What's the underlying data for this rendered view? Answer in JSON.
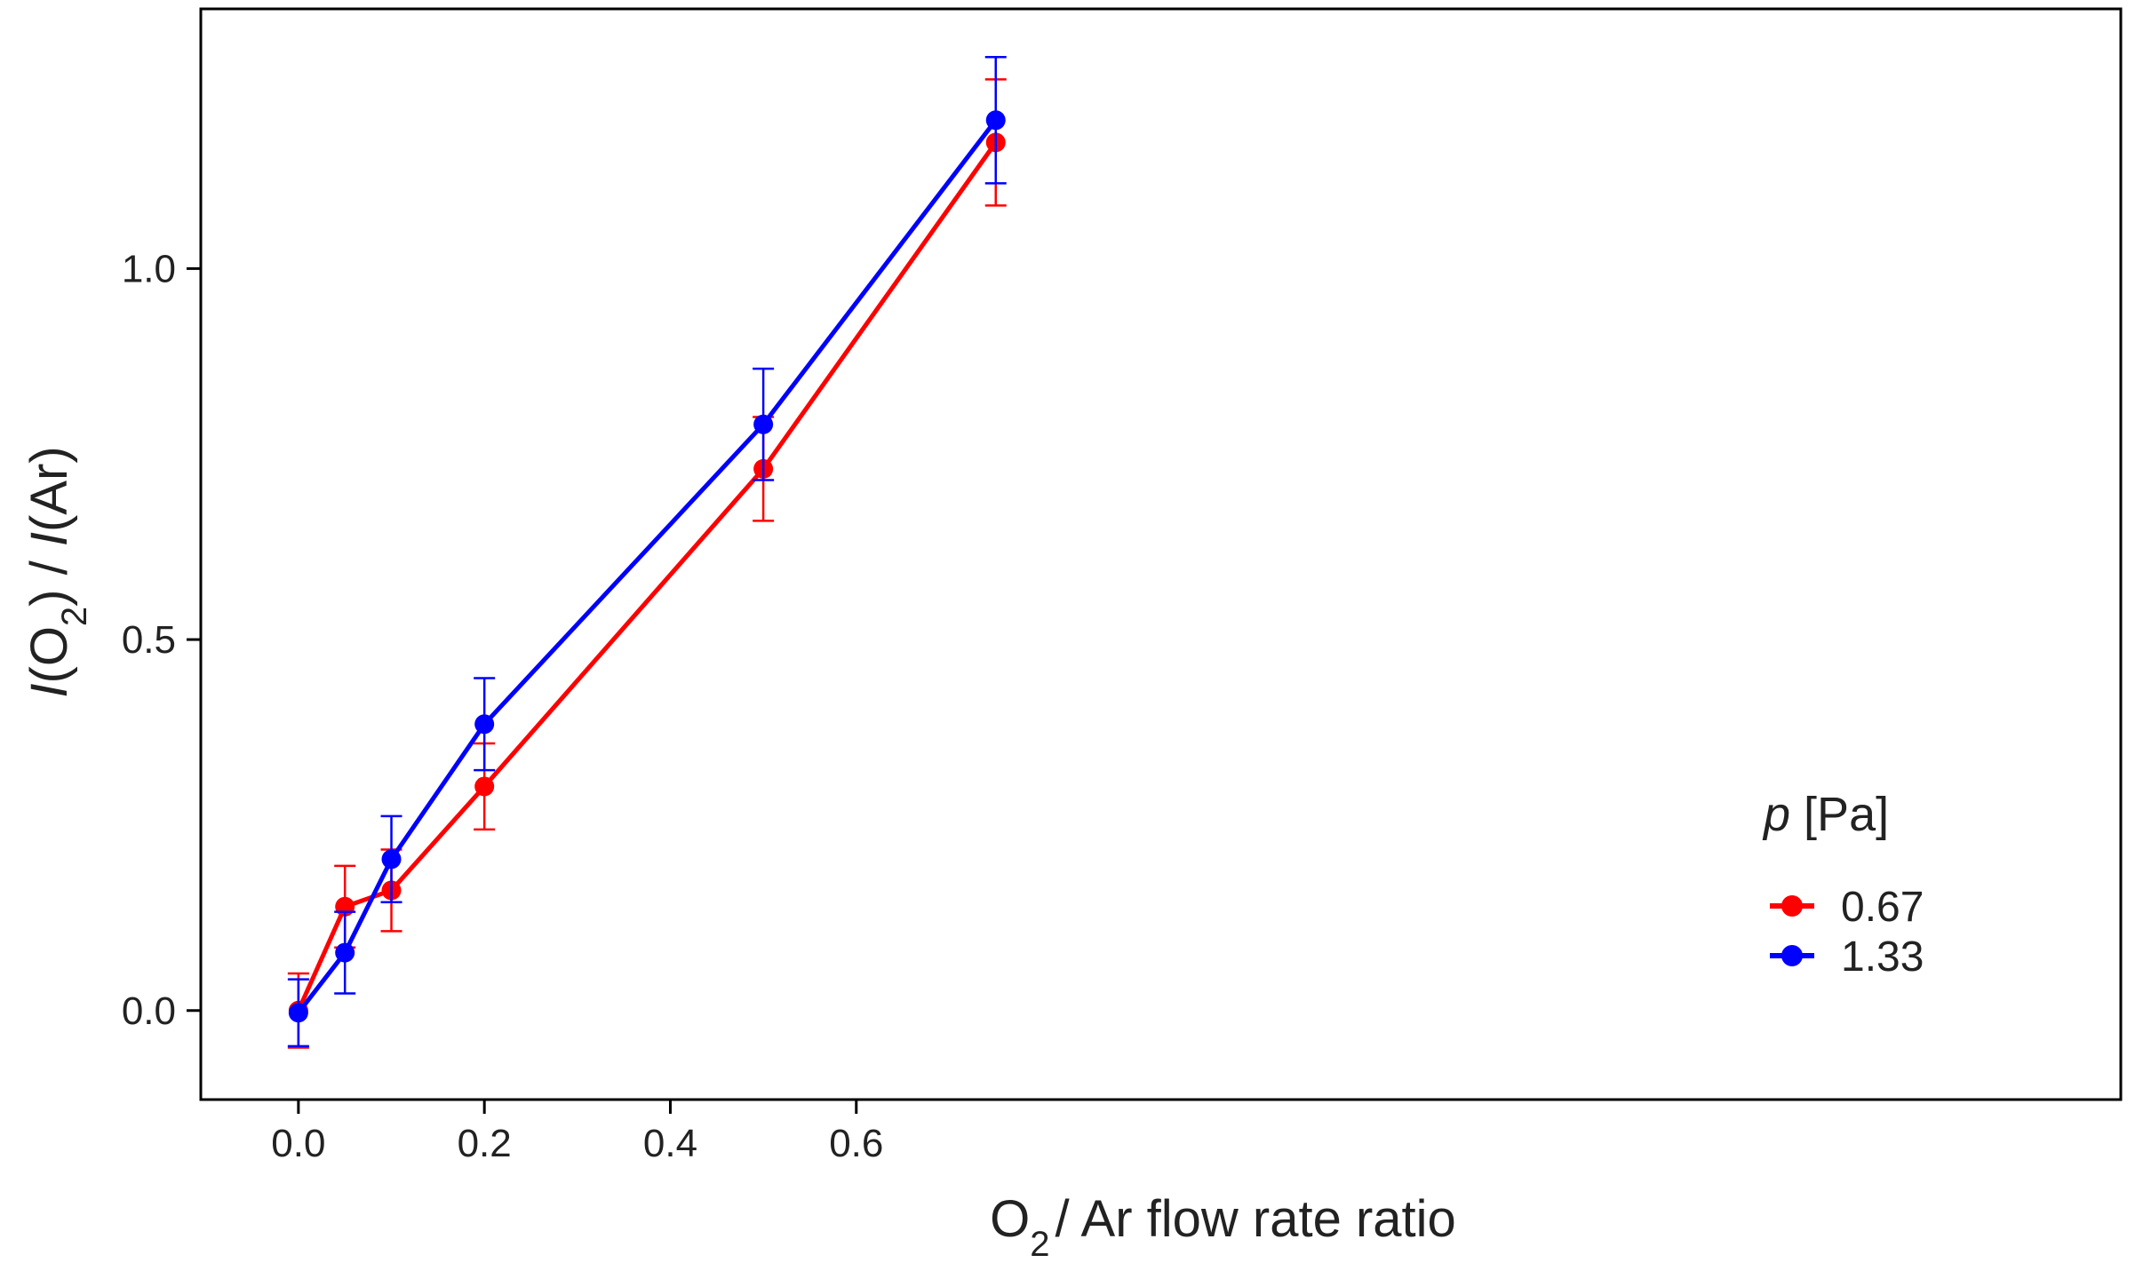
{
  "chart_data": {
    "type": "line",
    "title": "",
    "xlabel": {
      "main": "O",
      "sub": "2",
      "rest": "/ Ar flow rate ratio"
    },
    "ylabel": {
      "i1": "I",
      "p1": "(O",
      "sub": "2",
      "p2": ") / ",
      "i2": "I",
      "p3": "(Ar)"
    },
    "xlim": [
      -0.105,
      1.96
    ],
    "ylim": [
      -0.12,
      1.35
    ],
    "x_ticks": [
      0.0,
      0.2,
      0.4,
      0.6
    ],
    "x_tick_labels": [
      "0.0",
      "0.2",
      "0.4",
      "0.6"
    ],
    "y_ticks": [
      0.0,
      0.5,
      1.0
    ],
    "y_tick_labels": [
      "0.0",
      "0.5",
      "1.0"
    ],
    "grid": false,
    "legend": {
      "title_italic": "p",
      "title_rest": " [Pa]",
      "position": "right",
      "entries": [
        "0.67",
        "1.33"
      ]
    },
    "series": [
      {
        "name": "0.67",
        "color": "#ff0000",
        "x": [
          0.0,
          0.05,
          0.1,
          0.2,
          0.5,
          0.75
        ],
        "y": [
          0.0,
          0.14,
          0.162,
          0.302,
          0.73,
          1.17
        ],
        "err": [
          0.05,
          0.055,
          0.055,
          0.058,
          0.07,
          0.085
        ]
      },
      {
        "name": "1.33",
        "color": "#0000ff",
        "x": [
          0.0,
          0.05,
          0.1,
          0.2,
          0.5,
          0.75
        ],
        "y": [
          -0.003,
          0.078,
          0.204,
          0.386,
          0.79,
          1.2
        ],
        "err": [
          0.045,
          0.055,
          0.058,
          0.062,
          0.075,
          0.085
        ]
      }
    ]
  }
}
